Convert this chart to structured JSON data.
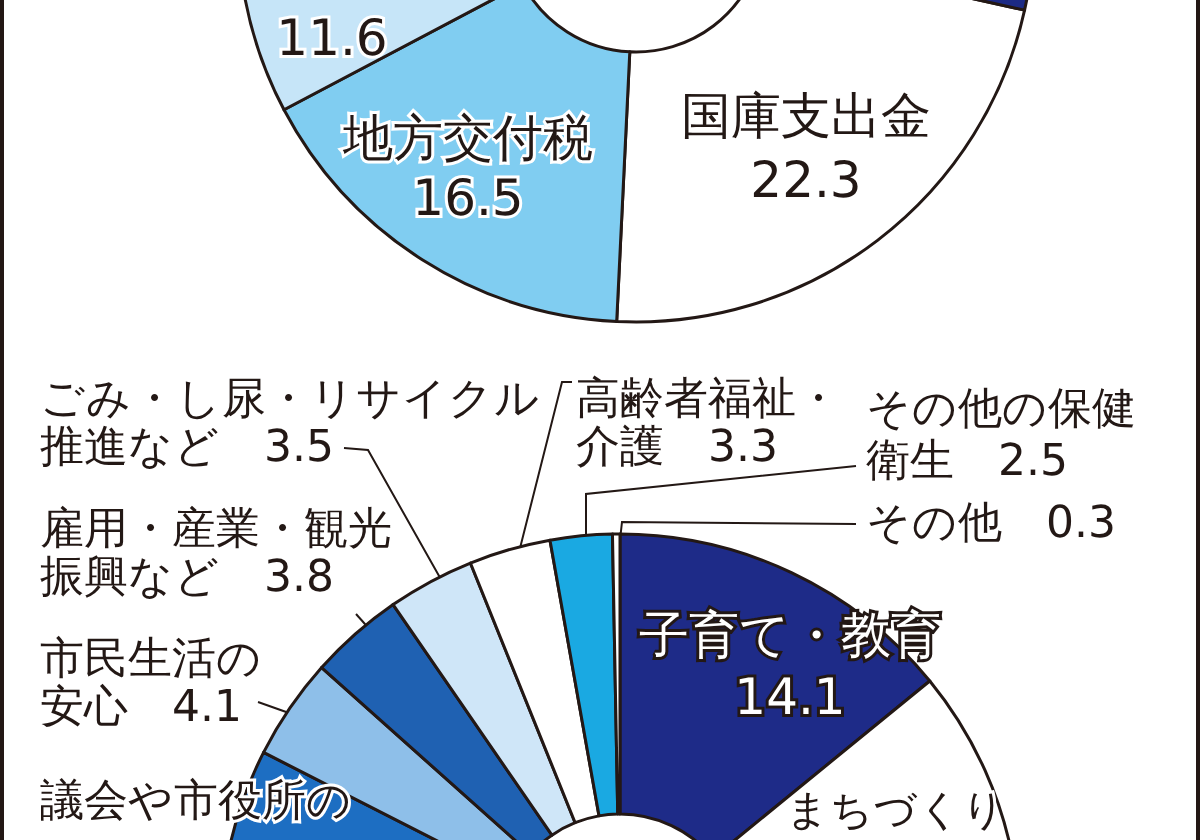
{
  "chart_data": [
    {
      "type": "donut",
      "categories": [
        "国庫支出金",
        "地方交付税",
        null,
        null
      ],
      "values": [
        22.3,
        16.5,
        11.6,
        49.6
      ],
      "colors": [
        "#ffffff",
        "#80cdf1",
        "#c6e5f8",
        "#1c2a85"
      ],
      "value_labels": [
        "22.3",
        "16.5",
        "11.6",
        null
      ]
    },
    {
      "type": "donut",
      "categories": [
        "子育て・教育",
        "まちづくり",
        "議会や市役所の",
        "市民生活の安心",
        "雇用・産業・観光振興など",
        "ごみ・し尿・リサイクル推進など",
        "高齢者福祉・介護",
        "その他の保健衛生",
        "その他"
      ],
      "values": [
        14.1,
        34.2,
        34.2,
        4.1,
        3.8,
        3.5,
        3.3,
        2.5,
        0.3
      ],
      "colors": [
        "#1e2b88",
        "#ffffff",
        "#1d6ec2",
        "#8ebfe9",
        "#1f61b2",
        "#cfe6f8",
        "#ffffff",
        "#1aa9e2",
        "#ffffff"
      ],
      "value_labels": [
        "14.1",
        null,
        null,
        "4.1",
        "3.8",
        "3.5",
        "3.3",
        "2.5",
        "0.3"
      ]
    }
  ]
}
